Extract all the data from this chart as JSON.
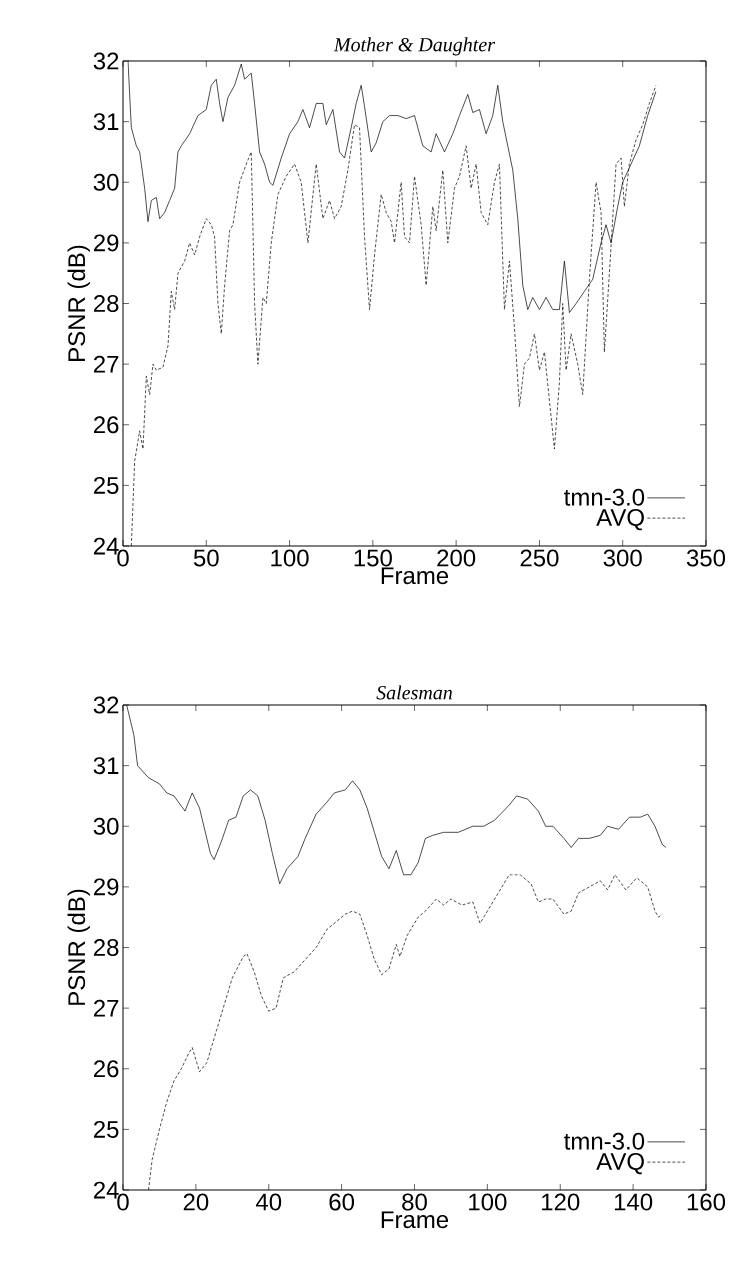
{
  "chart_data": [
    {
      "type": "line",
      "title": "*Mother & Daughter*",
      "xlabel": "Frame",
      "ylabel": "PSNR (dB)",
      "xlim": [
        0,
        350
      ],
      "ylim": [
        24,
        32
      ],
      "xticks": [
        0,
        50,
        100,
        150,
        200,
        250,
        300,
        350
      ],
      "yticks": [
        24,
        25,
        26,
        27,
        28,
        29,
        30,
        31,
        32
      ],
      "legend": "bottom right",
      "series": [
        {
          "name": "tmn-3.0",
          "color": "#000000",
          "line_style": "solid",
          "x": [
            3,
            5,
            8,
            10,
            13,
            15,
            17,
            20,
            22,
            25,
            28,
            31,
            33,
            35,
            40,
            45,
            50,
            53,
            56,
            58,
            60,
            63,
            67,
            71,
            73,
            77,
            79,
            82,
            85,
            88,
            90,
            95,
            100,
            105,
            108,
            112,
            116,
            120,
            122,
            126,
            130,
            133,
            137,
            140,
            143,
            145,
            149,
            152,
            156,
            160,
            165,
            170,
            175,
            180,
            185,
            188,
            193,
            198,
            202,
            207,
            210,
            214,
            218,
            222,
            225,
            228,
            231,
            234,
            237,
            240,
            243,
            246,
            250,
            254,
            258,
            262,
            265,
            268,
            272,
            277,
            282,
            287,
            290,
            293,
            297,
            300,
            305,
            310,
            315,
            320
          ],
          "values": [
            32,
            30.9,
            30.6,
            30.5,
            29.9,
            29.35,
            29.7,
            29.75,
            29.4,
            29.5,
            29.7,
            29.9,
            30.5,
            30.6,
            30.8,
            31.1,
            31.2,
            31.6,
            31.7,
            31.3,
            31.0,
            31.4,
            31.6,
            31.95,
            31.7,
            31.8,
            31.3,
            30.5,
            30.3,
            30.0,
            29.95,
            30.4,
            30.8,
            31.0,
            31.2,
            30.9,
            31.3,
            31.3,
            30.95,
            31.2,
            30.5,
            30.4,
            30.9,
            31.3,
            31.6,
            31.25,
            30.5,
            30.65,
            31.0,
            31.1,
            31.1,
            31.05,
            31.1,
            30.6,
            30.5,
            30.8,
            30.5,
            30.8,
            31.1,
            31.45,
            31.15,
            31.2,
            30.8,
            31.1,
            31.6,
            31.0,
            30.6,
            30.2,
            29.4,
            28.3,
            27.9,
            28.1,
            27.9,
            28.1,
            27.9,
            27.9,
            28.7,
            27.85,
            28.0,
            28.2,
            28.4,
            29.0,
            29.3,
            29.0,
            29.6,
            30.0,
            30.3,
            30.6,
            31.1,
            31.5
          ]
        },
        {
          "name": "AVQ",
          "color": "#000000",
          "line_style": "dashed",
          "x": [
            5,
            7,
            10,
            12,
            14,
            16,
            18,
            20,
            24,
            27,
            29,
            31,
            33,
            37,
            40,
            43,
            46,
            50,
            53,
            55,
            57,
            59,
            61,
            64,
            66,
            70,
            74,
            77,
            79,
            81,
            84,
            86,
            89,
            93,
            98,
            103,
            107,
            111,
            116,
            120,
            124,
            127,
            131,
            135,
            139,
            142,
            145,
            148,
            151,
            155,
            158,
            161,
            163,
            167,
            169,
            172,
            175,
            179,
            182,
            186,
            188,
            192,
            195,
            199,
            202,
            206,
            209,
            212,
            215,
            219,
            223,
            226,
            229,
            232,
            235,
            238,
            241,
            244,
            247,
            250,
            253,
            256,
            259,
            262,
            264,
            266,
            269,
            273,
            276,
            280,
            284,
            287,
            289,
            292,
            296,
            299,
            301,
            304,
            308,
            312,
            316,
            320
          ],
          "values": [
            24.0,
            25.4,
            25.9,
            25.6,
            26.8,
            26.5,
            27.0,
            26.9,
            26.95,
            27.3,
            28.2,
            27.9,
            28.5,
            28.7,
            29.0,
            28.8,
            29.1,
            29.4,
            29.3,
            29.1,
            28.0,
            27.5,
            28.3,
            29.2,
            29.3,
            30.0,
            30.3,
            30.5,
            28.0,
            27.0,
            28.1,
            28.0,
            29.0,
            29.8,
            30.1,
            30.3,
            30.0,
            29.0,
            30.3,
            29.4,
            29.7,
            29.4,
            29.6,
            30.2,
            30.95,
            30.9,
            29.1,
            27.9,
            28.8,
            29.8,
            29.5,
            29.35,
            29.0,
            30.0,
            29.1,
            29.0,
            30.1,
            29.3,
            28.3,
            29.6,
            29.2,
            30.2,
            29.0,
            29.9,
            30.1,
            30.6,
            29.9,
            30.3,
            29.5,
            29.3,
            30.0,
            30.3,
            27.9,
            28.7,
            27.6,
            26.3,
            27.0,
            27.1,
            27.5,
            26.9,
            27.2,
            26.4,
            25.6,
            26.7,
            28.0,
            26.9,
            27.5,
            27.0,
            26.5,
            28.4,
            30.0,
            29.5,
            27.2,
            28.5,
            30.3,
            30.4,
            29.6,
            30.3,
            30.7,
            30.95,
            31.3,
            31.6
          ]
        }
      ]
    },
    {
      "type": "line",
      "title": "*Salesman*",
      "xlabel": "Frame",
      "ylabel": "PSNR (dB)",
      "xlim": [
        0,
        160
      ],
      "ylim": [
        24,
        32
      ],
      "xticks": [
        0,
        20,
        40,
        60,
        80,
        100,
        120,
        140,
        160
      ],
      "yticks": [
        24,
        25,
        26,
        27,
        28,
        29,
        30,
        31,
        32
      ],
      "legend": "bottom right",
      "series": [
        {
          "name": "tmn-3.0",
          "color": "#000000",
          "line_style": "solid",
          "x": [
            1,
            3,
            4,
            7,
            10,
            12,
            14,
            17,
            19,
            21,
            24,
            25,
            27,
            29,
            31,
            33,
            35,
            37,
            39,
            41,
            43,
            45,
            48,
            50,
            53,
            56,
            58,
            61,
            63,
            65,
            67,
            69,
            71,
            73,
            75,
            77,
            79,
            81,
            83,
            85,
            88,
            92,
            96,
            99,
            102,
            106,
            108,
            111,
            114,
            116,
            118,
            121,
            123,
            125,
            128,
            131,
            133,
            136,
            139,
            142,
            144,
            146,
            148,
            149
          ],
          "values": [
            32.0,
            31.5,
            31.0,
            30.8,
            30.7,
            30.55,
            30.5,
            30.25,
            30.55,
            30.3,
            29.55,
            29.45,
            29.75,
            30.1,
            30.15,
            30.5,
            30.6,
            30.5,
            30.1,
            29.55,
            29.05,
            29.3,
            29.5,
            29.8,
            30.2,
            30.4,
            30.55,
            30.6,
            30.75,
            30.6,
            30.3,
            29.9,
            29.5,
            29.3,
            29.6,
            29.2,
            29.2,
            29.4,
            29.8,
            29.85,
            29.9,
            29.9,
            30.0,
            30.0,
            30.1,
            30.35,
            30.5,
            30.45,
            30.25,
            30.0,
            30.0,
            29.8,
            29.65,
            29.8,
            29.8,
            29.85,
            30.0,
            29.95,
            30.15,
            30.15,
            30.2,
            30.0,
            29.7,
            29.65
          ]
        },
        {
          "name": "AVQ",
          "color": "#000000",
          "line_style": "dashed",
          "x": [
            7,
            8,
            10,
            12,
            14,
            16,
            18,
            19,
            21,
            23,
            25,
            28,
            30,
            33,
            34,
            36,
            38,
            40,
            42,
            44,
            47,
            50,
            53,
            56,
            59,
            61,
            63,
            65,
            67,
            69,
            71,
            73,
            75,
            76,
            78,
            81,
            83,
            86,
            88,
            90,
            93,
            96,
            98,
            100,
            103,
            106,
            109,
            112,
            114,
            116,
            118,
            121,
            123,
            125,
            128,
            131,
            133,
            135,
            138,
            141,
            144,
            146,
            147,
            148
          ],
          "values": [
            24.0,
            24.5,
            25.0,
            25.45,
            25.8,
            26.0,
            26.25,
            26.35,
            25.95,
            26.1,
            26.5,
            27.1,
            27.5,
            27.85,
            27.9,
            27.6,
            27.2,
            26.95,
            27.0,
            27.5,
            27.6,
            27.8,
            28.0,
            28.3,
            28.45,
            28.55,
            28.6,
            28.55,
            28.2,
            27.8,
            27.55,
            27.65,
            28.05,
            27.85,
            28.2,
            28.5,
            28.6,
            28.8,
            28.7,
            28.8,
            28.7,
            28.75,
            28.4,
            28.6,
            28.9,
            29.2,
            29.2,
            29.05,
            28.75,
            28.8,
            28.8,
            28.55,
            28.6,
            28.9,
            29.0,
            29.1,
            28.95,
            29.2,
            28.95,
            29.15,
            29.0,
            28.6,
            28.5,
            28.55
          ]
        }
      ]
    }
  ]
}
